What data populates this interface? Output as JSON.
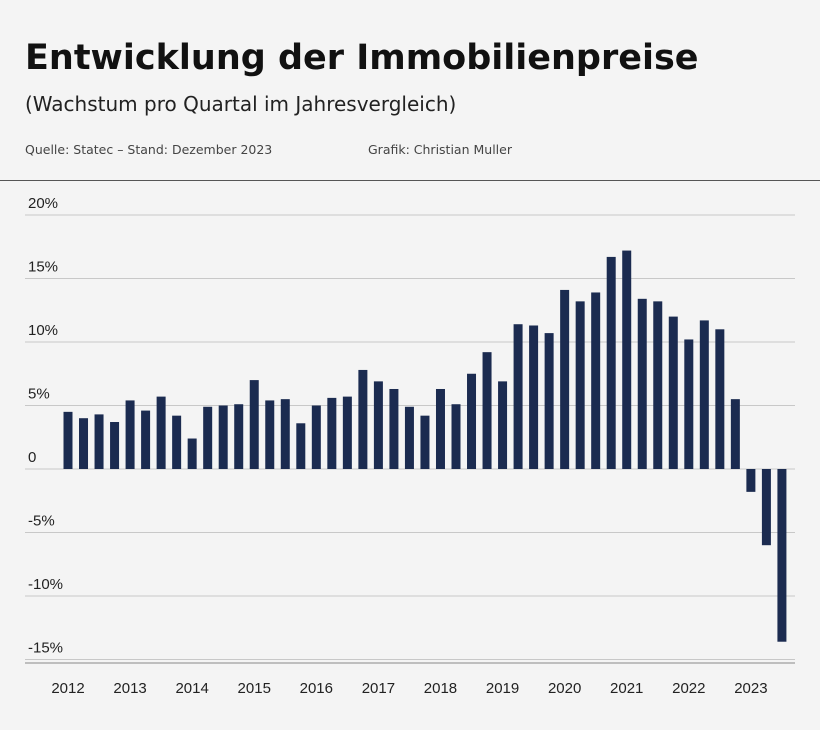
{
  "header": {
    "title": "Entwicklung der Immobilienpreise",
    "subtitle": "(Wachstum pro Quartal im Jahresvergleich)",
    "source": "Quelle: Statec – Stand: Dezember 2023",
    "credit": "Grafik: Christian Muller"
  },
  "colors": {
    "bar": "#1b2b50",
    "grid": "#c8c8c8",
    "background": "#f4f4f4"
  },
  "chart_data": {
    "type": "bar",
    "title": "Entwicklung der Immobilienpreise",
    "subtitle": "(Wachstum pro Quartal im Jahresvergleich)",
    "xlabel": "",
    "ylabel": "",
    "ylim": [
      -15,
      20
    ],
    "grid": true,
    "y_ticks": [
      {
        "value": 20,
        "label": "20%"
      },
      {
        "value": 15,
        "label": "15%"
      },
      {
        "value": 10,
        "label": "10%"
      },
      {
        "value": 5,
        "label": "5%"
      },
      {
        "value": 0,
        "label": "0"
      },
      {
        "value": -5,
        "label": "-5%"
      },
      {
        "value": -10,
        "label": "-10%"
      },
      {
        "value": -15,
        "label": "-15%"
      }
    ],
    "x_tick_labels": [
      "2012",
      "2013",
      "2014",
      "2015",
      "2016",
      "2017",
      "2018",
      "2019",
      "2020",
      "2021",
      "2022",
      "2023"
    ],
    "categories": [
      "2012 Q1",
      "2012 Q2",
      "2012 Q3",
      "2012 Q4",
      "2013 Q1",
      "2013 Q2",
      "2013 Q3",
      "2013 Q4",
      "2014 Q1",
      "2014 Q2",
      "2014 Q3",
      "2014 Q4",
      "2015 Q1",
      "2015 Q2",
      "2015 Q3",
      "2015 Q4",
      "2016 Q1",
      "2016 Q2",
      "2016 Q3",
      "2016 Q4",
      "2017 Q1",
      "2017 Q2",
      "2017 Q3",
      "2017 Q4",
      "2018 Q1",
      "2018 Q2",
      "2018 Q3",
      "2018 Q4",
      "2019 Q1",
      "2019 Q2",
      "2019 Q3",
      "2019 Q4",
      "2020 Q1",
      "2020 Q2",
      "2020 Q3",
      "2020 Q4",
      "2021 Q1",
      "2021 Q2",
      "2021 Q3",
      "2021 Q4",
      "2022 Q1",
      "2022 Q2",
      "2022 Q3",
      "2022 Q4",
      "2023 Q1",
      "2023 Q2",
      "2023 Q3"
    ],
    "values": [
      4.5,
      4.0,
      4.3,
      3.7,
      5.4,
      4.6,
      5.7,
      4.2,
      2.4,
      4.9,
      5.0,
      5.1,
      7.0,
      5.4,
      5.5,
      3.6,
      5.0,
      5.6,
      5.7,
      7.8,
      6.9,
      6.3,
      4.9,
      4.2,
      6.3,
      5.1,
      7.5,
      9.2,
      6.9,
      11.4,
      11.3,
      10.7,
      14.1,
      13.2,
      13.9,
      16.7,
      17.2,
      13.4,
      13.2,
      12.0,
      10.2,
      11.7,
      11.0,
      5.5,
      -1.8,
      -6.0,
      -13.6
    ]
  }
}
